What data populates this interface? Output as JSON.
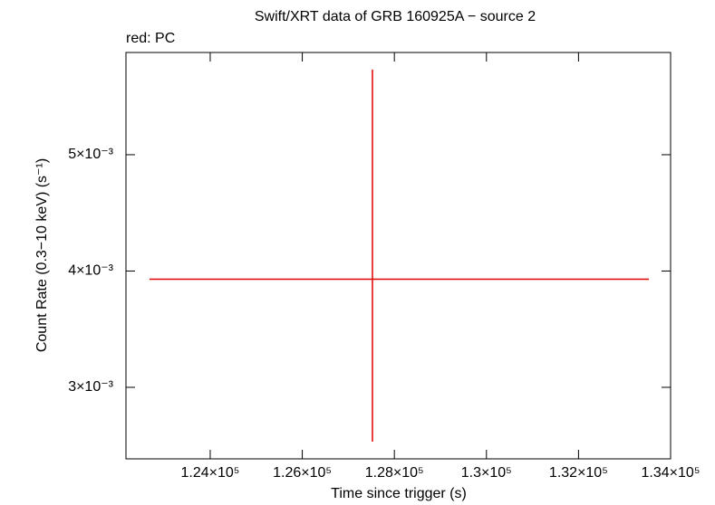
{
  "chart_data": {
    "type": "errorbar",
    "title": "Swift/XRT data of GRB 160925A − source 2",
    "subtitle": "red: PC",
    "x_label": "Time since trigger (s)",
    "y_label": "Count Rate (0.3−10 keV) (s⁻¹)",
    "series": [
      {
        "name": "PC",
        "color": "#e00000",
        "x": [
          127524
        ],
        "values": [
          0.00393
        ],
        "xerr_minus": [
          4843
        ],
        "xerr_plus": [
          6004
        ],
        "yerr_minus": [
          0.001397
        ],
        "yerr_plus": [
          0.001802
        ]
      }
    ],
    "xlim": [
      122170,
      134000
    ],
    "xticks": [
      {
        "value": 124000,
        "label": "1.24×10⁵"
      },
      {
        "value": 126000,
        "label": "1.26×10⁵"
      },
      {
        "value": 128000,
        "label": "1.28×10⁵"
      },
      {
        "value": 130000,
        "label": "1.3×10⁵"
      },
      {
        "value": 132000,
        "label": "1.32×10⁵"
      },
      {
        "value": 134000,
        "label": "1.34×10⁵"
      }
    ],
    "ylim": [
      0.002385,
      0.005879
    ],
    "yticks": [
      {
        "value": 0.003,
        "label": "3×10⁻³"
      },
      {
        "value": 0.004,
        "label": "4×10⁻³"
      },
      {
        "value": 0.005,
        "label": "5×10⁻³"
      }
    ]
  }
}
